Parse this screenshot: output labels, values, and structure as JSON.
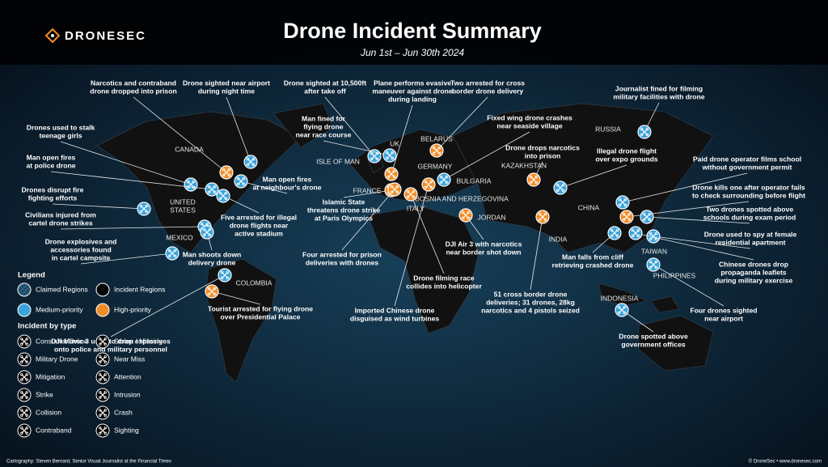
{
  "header": {
    "logo": "DRONESEC",
    "title": "Drone Incident Summary",
    "subtitle": "Jun 1st – Jun 30th 2024"
  },
  "countries": [
    [
      "CANADA"
    ],
    [
      "UNITED",
      "STATES"
    ],
    [
      "MEXICO"
    ],
    [
      "COLOMBIA"
    ],
    [
      "ISLE OF MAN"
    ],
    [
      "UK"
    ],
    [
      "FRANCE"
    ],
    [
      "GERMANY"
    ],
    [
      "BELARUS"
    ],
    [
      "BULGARIA"
    ],
    [
      "BOSNIA AND HERZEGOVINA"
    ],
    [
      "ITALY"
    ],
    [
      "JORDAN"
    ],
    [
      "KAZAKHSTAN"
    ],
    [
      "RUSSIA"
    ],
    [
      "CHINA"
    ],
    [
      "INDIA"
    ],
    [
      "TAIWAN"
    ],
    [
      "PHILIPPINES"
    ],
    [
      "INDONESIA"
    ]
  ],
  "incidents": [
    {
      "label": [
        "Narcotics and contraband",
        "drone dropped into prison"
      ],
      "color": "#f28c28"
    },
    {
      "label": [
        "Drone sighted near airport",
        "during night time"
      ],
      "color": "#3aa3dc"
    },
    {
      "label": [
        "Drone sighted at 10,500ft",
        "after take off"
      ],
      "color": "#3aa3dc"
    },
    {
      "label": [
        "Plane performs evasive",
        "maneuver against drone",
        "during landing"
      ],
      "color": "#f28c28"
    },
    {
      "label": [
        "Two arrested for cross",
        "border drone delivery"
      ],
      "color": "#f28c28"
    },
    {
      "label": [
        "Journalist fined for filming",
        "military facilities with drone"
      ],
      "color": "#3aa3dc"
    },
    {
      "label": [
        "Drones used to stalk",
        "teenage girls"
      ],
      "color": "#3aa3dc"
    },
    {
      "label": [
        "Man fined for",
        "flying drone",
        "near race course"
      ],
      "color": "#3aa3dc"
    },
    {
      "label": [
        "Fixed wing drone crashes",
        "near seaside village"
      ],
      "color": "#3aa3dc"
    },
    {
      "label": [
        "Drone drops narcotics",
        "into prison"
      ],
      "color": "#f28c28"
    },
    {
      "label": [
        "Man open fires",
        "at police drone"
      ],
      "color": "#3aa3dc"
    },
    {
      "label": [
        "Man open fires",
        "at neighbour's drone"
      ],
      "color": "#3aa3dc"
    },
    {
      "label": [
        "Illegal drone flight",
        "over expo grounds"
      ],
      "color": "#3aa3dc"
    },
    {
      "label": [
        "Paid drone operator films school",
        "without government permit"
      ],
      "color": "#3aa3dc"
    },
    {
      "label": [
        "Drones disrupt fire",
        "fighting efforts"
      ],
      "color": "#3aa3dc"
    },
    {
      "label": [
        "Islamic State",
        "threatens drone strike",
        "at Paris Olympics"
      ],
      "color": "#f28c28"
    },
    {
      "label": [
        "Drone kills one after operator fails",
        "to check surrounding before flight"
      ],
      "color": "#f28c28"
    },
    {
      "label": [
        "Five arrested for illegal",
        "drone flights near",
        "active stadium"
      ],
      "color": "#3aa3dc"
    },
    {
      "label": [
        "Two drones spotted above",
        "schools during exam period"
      ],
      "color": "#3aa3dc"
    },
    {
      "label": [
        "Civilians injured from",
        "cartel drone strikes"
      ],
      "color": "#3aa3dc"
    },
    {
      "label": [
        "Drone explosives and",
        "accessories found",
        "in cartel campsite"
      ],
      "color": "#3aa3dc"
    },
    {
      "label": [
        "Drone used to spy at female",
        "residential apartment"
      ],
      "color": "#3aa3dc"
    },
    {
      "label": [
        "DJI Air 3 with narcotics",
        "near border shot down"
      ],
      "color": "#f28c28"
    },
    {
      "label": [
        "Man shoots down",
        "delivery drone"
      ],
      "color": "#3aa3dc"
    },
    {
      "label": [
        "Four arrested for prison",
        "deliveries with drones"
      ],
      "color": "#f28c28"
    },
    {
      "label": [
        "Man falls from cliff",
        "retrieving crashed drone"
      ],
      "color": "#3aa3dc"
    },
    {
      "label": [
        "Chinese drones drop",
        "propaganda leaflets",
        "during military exercise"
      ],
      "color": "#3aa3dc"
    },
    {
      "label": [
        "Drone filming race",
        "collides into helicopter"
      ],
      "color": "#f28c28"
    },
    {
      "label": [
        "Tourist arrested for flying drone",
        "over Presidential Palace"
      ],
      "color": "#f28c28"
    },
    {
      "label": [
        "Four drones sighted",
        "near airport"
      ],
      "color": "#3aa3dc"
    },
    {
      "label": [
        "Imported Chinese drone",
        "disguised as wind turbines"
      ],
      "color": "#f28c28"
    },
    {
      "label": [
        "51 cross border drone",
        "deliveries; 31 drones, 28kg",
        "narcotics and 4 pistols seized"
      ],
      "color": "#f28c28"
    },
    {
      "label": [
        "Drone spotted above",
        "government offices"
      ],
      "color": "#3aa3dc"
    },
    {
      "label": [
        "DJI Mavic 3 used to drop explosives",
        "onto police and military personnel"
      ],
      "color": "#3aa3dc"
    }
  ],
  "legend": {
    "title": "Legend",
    "regions": [
      {
        "label": "Claimed Regions",
        "color": "#2d6f94"
      },
      {
        "label": "Incident Regions",
        "color": "#050505"
      },
      {
        "label": "Medium-priority",
        "color": "#3aa3dc"
      },
      {
        "label": "High-priority",
        "color": "#f28c28"
      }
    ],
    "type_title": "Incident by type",
    "types": [
      "Consumer Drone",
      "Military Drone",
      "Mitigation",
      "Strike",
      "Collision",
      "Contraband",
      "Stolen / Missing",
      "Near Miss",
      "Attention",
      "Intrusion",
      "Crash",
      "Sighting"
    ]
  },
  "footer": {
    "credit": "Cartography: Steven Bernard, Senior Visual Journalist at the Financial Times",
    "copyright": "© DroneSec • www.dronesec.com"
  }
}
